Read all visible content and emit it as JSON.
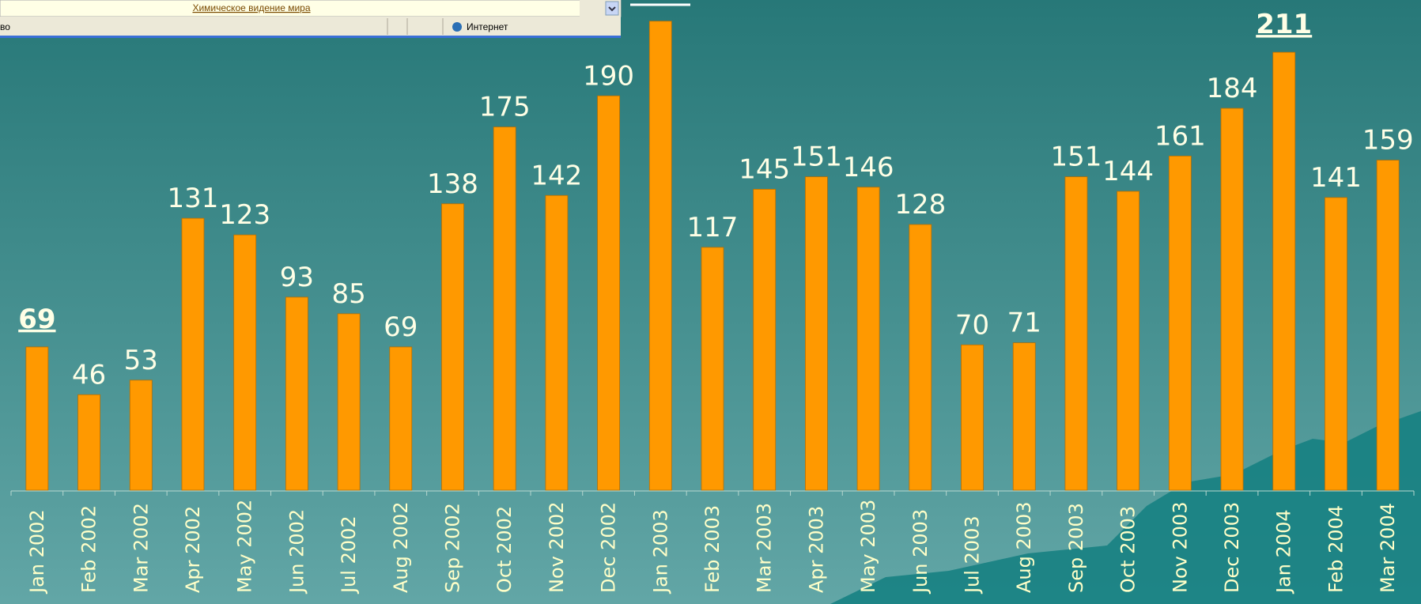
{
  "browser": {
    "link": "Химическое видение мира",
    "status_left": "во",
    "zone": "Интернет"
  },
  "chart_data": {
    "type": "bar",
    "categories": [
      "Jan 2002",
      "Feb 2002",
      "Mar 2002",
      "Apr 2002",
      "May 2002",
      "Jun 2002",
      "Jul 2002",
      "Aug 2002",
      "Sep 2002",
      "Oct 2002",
      "Nov 2002",
      "Dec 2002",
      "Jan 2003",
      "Feb 2003",
      "Mar 2003",
      "Apr 2003",
      "May 2003",
      "Jun 2003",
      "Jul 2003",
      "Aug 2003",
      "Sep 2003",
      "Oct 2003",
      "Nov 2003",
      "Dec 2003",
      "Jan 2004",
      "Feb 2004",
      "Mar 2004"
    ],
    "values": [
      69,
      46,
      53,
      131,
      123,
      93,
      85,
      69,
      138,
      175,
      142,
      190,
      226,
      117,
      145,
      151,
      146,
      128,
      70,
      71,
      151,
      144,
      161,
      184,
      211,
      141,
      159
    ],
    "value_labels": [
      "69",
      "46",
      "53",
      "131",
      "123",
      "93",
      "85",
      "69",
      "138",
      "175",
      "142",
      "190",
      null,
      "117",
      "145",
      "151",
      "146",
      "128",
      "70",
      "71",
      "151",
      "144",
      "161",
      "184",
      "211",
      "141",
      "159"
    ],
    "emphasized_indices": [
      0,
      24
    ],
    "color": "#ff9900",
    "ylim": [
      0,
      236
    ]
  }
}
